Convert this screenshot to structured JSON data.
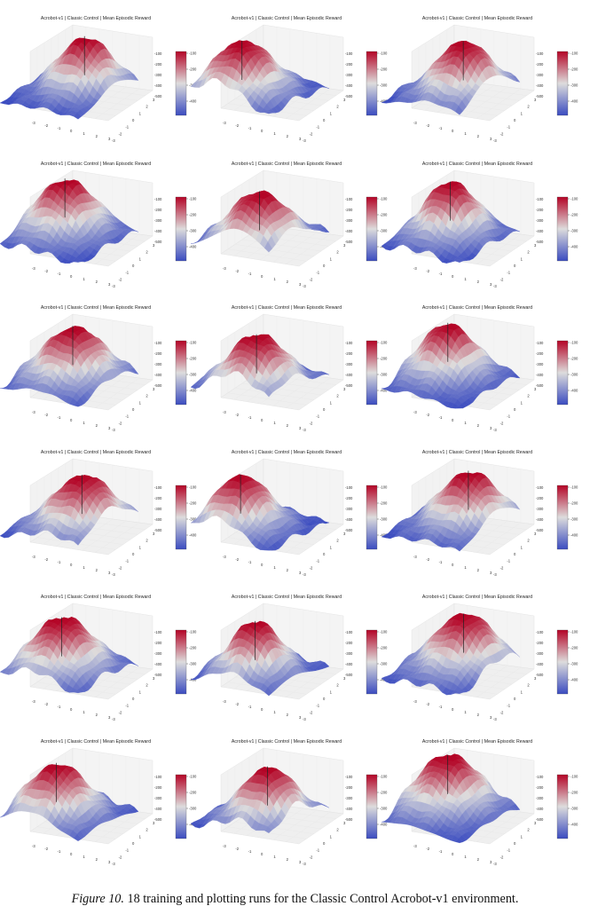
{
  "panel_title": "Acrobot-v1 | Classic Control | Mean Episodic Reward",
  "axis_ticks": [
    "-3",
    "-2",
    "-1",
    "0",
    "1",
    "2",
    "3"
  ],
  "colorbar_ticks": [
    "-100",
    "-200",
    "-300",
    "-400",
    "-500"
  ],
  "colorbar_ticks_short": [
    "-100",
    "-200",
    "-300",
    "-400"
  ],
  "colors": {
    "high": "#b40426",
    "mid": "#dddcdc",
    "low": "#3b4cc0"
  },
  "caption": {
    "label": "Figure 10.",
    "text": " 18 training and plotting runs for the Classic Control Acrobot-v1 environment."
  },
  "panels": [
    {
      "id": 1
    },
    {
      "id": 2
    },
    {
      "id": 3
    },
    {
      "id": 4
    },
    {
      "id": 5
    },
    {
      "id": 6
    },
    {
      "id": 7
    },
    {
      "id": 8
    },
    {
      "id": 9
    },
    {
      "id": 10
    },
    {
      "id": 11
    },
    {
      "id": 12
    },
    {
      "id": 13
    },
    {
      "id": 14
    },
    {
      "id": 15
    },
    {
      "id": 16
    },
    {
      "id": 17
    },
    {
      "id": 18
    }
  ]
}
